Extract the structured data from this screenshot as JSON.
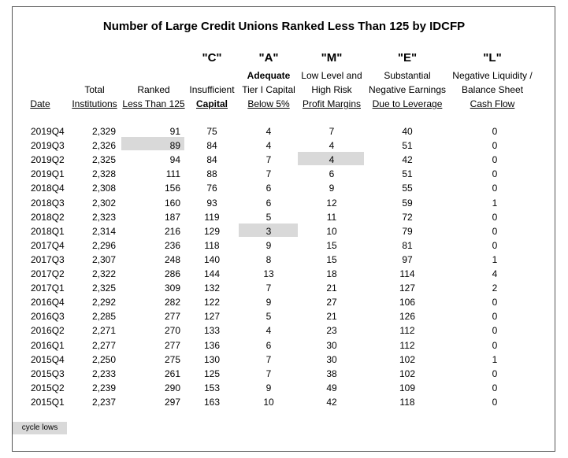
{
  "title": "Number of Large Credit Unions Ranked Less Than 125 by IDCFP",
  "letters": [
    "\"C\"",
    "\"A\"",
    "\"M\"",
    "\"E\"",
    "\"L\""
  ],
  "headers": {
    "date": "Date",
    "total": [
      "Total",
      "Institutions"
    ],
    "ranked": [
      "Ranked",
      "Less Than 125"
    ],
    "c": [
      "Insufficient",
      "Capital"
    ],
    "a": [
      "Adequate",
      "Tier I Capital",
      "Below 5%"
    ],
    "m": [
      "Low Level and",
      "High Risk",
      "Profit Margins"
    ],
    "e": [
      "Substantial",
      "Negative Earnings",
      "Due to Leverage"
    ],
    "l": [
      "Negative Liquidity /",
      "Balance Sheet",
      "Cash Flow"
    ]
  },
  "rows": [
    [
      "2019Q4",
      "2,329",
      "91",
      "75",
      "4",
      "7",
      "40",
      "0"
    ],
    [
      "2019Q3",
      "2,326",
      "89",
      "84",
      "4",
      "4",
      "51",
      "0"
    ],
    [
      "2019Q2",
      "2,325",
      "94",
      "84",
      "7",
      "4",
      "42",
      "0"
    ],
    [
      "2019Q1",
      "2,328",
      "111",
      "88",
      "7",
      "6",
      "51",
      "0"
    ],
    [
      "2018Q4",
      "2,308",
      "156",
      "76",
      "6",
      "9",
      "55",
      "0"
    ],
    [
      "2018Q3",
      "2,302",
      "160",
      "93",
      "6",
      "12",
      "59",
      "1"
    ],
    [
      "2018Q2",
      "2,323",
      "187",
      "119",
      "5",
      "11",
      "72",
      "0"
    ],
    [
      "2018Q1",
      "2,314",
      "216",
      "129",
      "3",
      "10",
      "79",
      "0"
    ],
    [
      "2017Q4",
      "2,296",
      "236",
      "118",
      "9",
      "15",
      "81",
      "0"
    ],
    [
      "2017Q3",
      "2,307",
      "248",
      "140",
      "8",
      "15",
      "97",
      "1"
    ],
    [
      "2017Q2",
      "2,322",
      "286",
      "144",
      "13",
      "18",
      "114",
      "4"
    ],
    [
      "2017Q1",
      "2,325",
      "309",
      "132",
      "7",
      "21",
      "127",
      "2"
    ],
    [
      "2016Q4",
      "2,292",
      "282",
      "122",
      "9",
      "27",
      "106",
      "0"
    ],
    [
      "2016Q3",
      "2,285",
      "277",
      "127",
      "5",
      "21",
      "126",
      "0"
    ],
    [
      "2016Q2",
      "2,271",
      "270",
      "133",
      "4",
      "23",
      "112",
      "0"
    ],
    [
      "2016Q1",
      "2,277",
      "277",
      "136",
      "6",
      "30",
      "112",
      "0"
    ],
    [
      "2015Q4",
      "2,250",
      "275",
      "130",
      "7",
      "30",
      "102",
      "1"
    ],
    [
      "2015Q3",
      "2,233",
      "261",
      "125",
      "7",
      "38",
      "102",
      "0"
    ],
    [
      "2015Q2",
      "2,239",
      "290",
      "153",
      "9",
      "49",
      "109",
      "0"
    ],
    [
      "2015Q1",
      "2,237",
      "297",
      "163",
      "10",
      "42",
      "118",
      "0"
    ]
  ],
  "legend": "cycle lows",
  "highlight_color": "#d9d9d9"
}
